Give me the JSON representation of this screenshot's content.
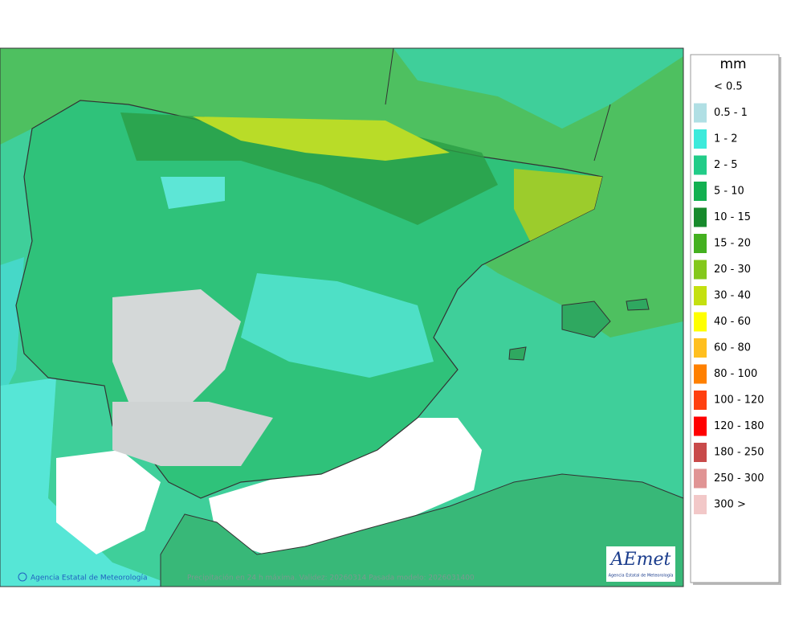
{
  "legend": {
    "unit": "mm",
    "items": [
      {
        "label": "< 0.5",
        "color": "#ffffff"
      },
      {
        "label": "0.5 - 1",
        "color": "#b0dfe4"
      },
      {
        "label": "1 - 2",
        "color": "#3ceadb"
      },
      {
        "label": "2 - 5",
        "color": "#22cc88"
      },
      {
        "label": "5 - 10",
        "color": "#12b050"
      },
      {
        "label": "10 - 15",
        "color": "#178a2c"
      },
      {
        "label": "15 - 20",
        "color": "#44b020"
      },
      {
        "label": "20 - 30",
        "color": "#84c81c"
      },
      {
        "label": "30 - 40",
        "color": "#c4e010"
      },
      {
        "label": "40 - 60",
        "color": "#ffff00"
      },
      {
        "label": "60 - 80",
        "color": "#ffbf1f"
      },
      {
        "label": "80 - 100",
        "color": "#ff8000"
      },
      {
        "label": "100 - 120",
        "color": "#ff4010"
      },
      {
        "label": "120 - 180",
        "color": "#ff0000"
      },
      {
        "label": "180 - 250",
        "color": "#c84a4a"
      },
      {
        "label": "250 - 300",
        "color": "#e09494"
      },
      {
        "label": "300 >",
        "color": "#f2c8c8"
      }
    ]
  },
  "footer": {
    "credit": "Agencia Estatal de Meteorología",
    "caption": "Precipitación en 24 h máxima. Validez: 20260314 Pasada modelo: 2026031400"
  },
  "logo": {
    "text": "AEmet",
    "subtitle": "Agencia Estatal de Meteorología"
  }
}
